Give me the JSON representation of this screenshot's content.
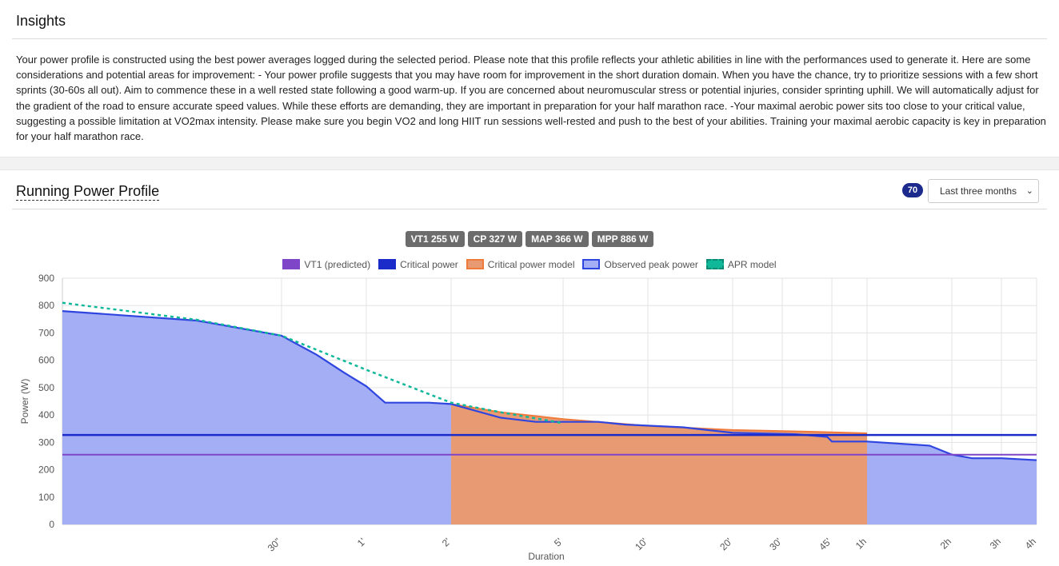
{
  "insights": {
    "title": "Insights",
    "text": "Your power profile is constructed using the best power averages logged during the selected period. Please note that this profile reflects your athletic abilities in line with the performances used to generate it. Here are some considerations and potential areas for improvement: - Your power profile suggests that you may have room for improvement in the short duration domain. When you have the chance, try to prioritize sessions with a few short sprints (30-60s all out). Aim to commence these in a well rested state following a good warm-up. If you are concerned about neuromuscular stress or potential injuries, consider sprinting uphill. We will automatically adjust for the gradient of the road to ensure accurate speed values. While these efforts are demanding, they are important in preparation for your half marathon race. -Your maximal aerobic power sits too close to your critical value, suggesting a possible limitation at VO2max intensity. Please make sure you begin VO2 and long HIIT run sessions well-rested and push to the best of your abilities. Training your maximal aerobic capacity is key in preparation for your half marathon race."
  },
  "profile": {
    "title": "Running Power Profile",
    "count_badge": "70",
    "period_selected": "Last three months",
    "tags": [
      "VT1 255 W",
      "CP 327 W",
      "MAP 366 W",
      "MPP 886 W"
    ]
  },
  "colors": {
    "vt1": "#7e45c9",
    "cp": "#1a2bc9",
    "cp_model_fill": "#e89a72",
    "cp_model_line": "#f07a3a",
    "observed_fill": "#a4aef4",
    "observed_line": "#2f45e0",
    "apr": "#10b89a"
  },
  "chart_data": {
    "type": "area",
    "xlabel": "Duration",
    "ylabel": "Power (W)",
    "x_scale": "log",
    "x_range_seconds": [
      5,
      14400
    ],
    "ylim": [
      0,
      900
    ],
    "y_ticks": [
      0,
      100,
      200,
      300,
      400,
      500,
      600,
      700,
      800,
      900
    ],
    "x_ticks": [
      {
        "label": "30\"",
        "seconds": 30
      },
      {
        "label": "1'",
        "seconds": 60
      },
      {
        "label": "2'",
        "seconds": 120
      },
      {
        "label": "5'",
        "seconds": 300
      },
      {
        "label": "10'",
        "seconds": 600
      },
      {
        "label": "20'",
        "seconds": 1200
      },
      {
        "label": "30'",
        "seconds": 1800
      },
      {
        "label": "45'",
        "seconds": 2700
      },
      {
        "label": "1h",
        "seconds": 3600
      },
      {
        "label": "2h",
        "seconds": 7200
      },
      {
        "label": "3h",
        "seconds": 10800
      },
      {
        "label": "4h",
        "seconds": 14400
      }
    ],
    "legend": [
      "VT1 (predicted)",
      "Critical power",
      "Critical power model",
      "Observed peak power",
      "APR model"
    ],
    "series": [
      {
        "name": "VT1 (predicted)",
        "kind": "hline",
        "value": 255
      },
      {
        "name": "Critical power",
        "kind": "hline",
        "value": 327
      },
      {
        "name": "Observed peak power",
        "kind": "area",
        "points": [
          [
            5,
            780
          ],
          [
            15,
            745
          ],
          [
            30,
            690
          ],
          [
            40,
            620
          ],
          [
            50,
            555
          ],
          [
            60,
            505
          ],
          [
            70,
            445
          ],
          [
            100,
            445
          ],
          [
            120,
            440
          ],
          [
            180,
            390
          ],
          [
            240,
            375
          ],
          [
            300,
            375
          ],
          [
            400,
            375
          ],
          [
            500,
            365
          ],
          [
            800,
            355
          ],
          [
            1200,
            335
          ],
          [
            2000,
            330
          ],
          [
            2600,
            320
          ],
          [
            2700,
            303
          ],
          [
            3600,
            303
          ],
          [
            6000,
            288
          ],
          [
            7200,
            255
          ],
          [
            8500,
            242
          ],
          [
            10800,
            242
          ],
          [
            14400,
            235
          ]
        ]
      },
      {
        "name": "Critical power model",
        "kind": "area",
        "points": [
          [
            120,
            440
          ],
          [
            180,
            410
          ],
          [
            300,
            385
          ],
          [
            600,
            360
          ],
          [
            1200,
            345
          ],
          [
            2400,
            338
          ],
          [
            3600,
            333
          ]
        ]
      },
      {
        "name": "APR model",
        "kind": "dashed",
        "points": [
          [
            5,
            810
          ],
          [
            15,
            748
          ],
          [
            30,
            690
          ],
          [
            60,
            565
          ],
          [
            120,
            445
          ],
          [
            180,
            410
          ],
          [
            300,
            370
          ]
        ]
      }
    ]
  }
}
